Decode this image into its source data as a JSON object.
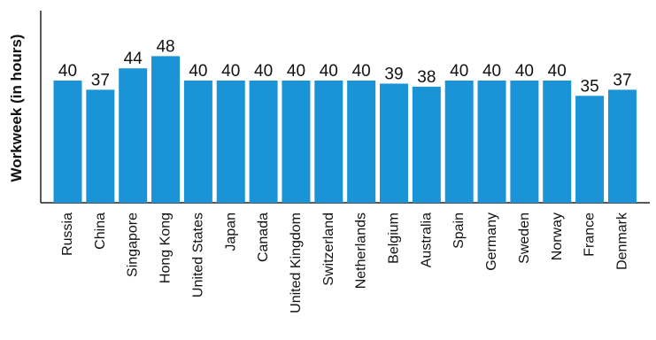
{
  "chart_data": {
    "type": "bar",
    "title": "",
    "xlabel": "",
    "ylabel": "Workweek (in hours)",
    "ylim": [
      0,
      50
    ],
    "grid": false,
    "bar_color": "#1a94d6",
    "categories": [
      "Russia",
      "China",
      "Singapore",
      "Hong Kong",
      "United States",
      "Japan",
      "Canada",
      "United Kingdom",
      "Switzerland",
      "Netherlands",
      "Belgium",
      "Australia",
      "Spain",
      "Germany",
      "Sweden",
      "Norway",
      "France",
      "Denmark"
    ],
    "values": [
      40,
      37,
      44,
      48,
      40,
      40,
      40,
      40,
      40,
      40,
      39,
      38,
      40,
      40,
      40,
      40,
      35,
      37
    ]
  }
}
